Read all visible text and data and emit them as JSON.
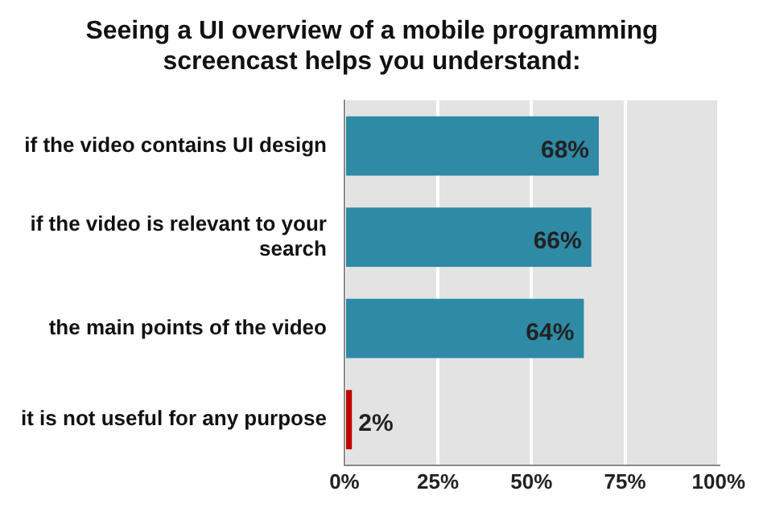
{
  "chart_data": {
    "type": "bar",
    "orientation": "horizontal",
    "title": "Seeing a UI overview of a mobile programming screencast helps you understand:",
    "categories": [
      "if the video contains UI design",
      "if the video is relevant to your search",
      "the main points of the video",
      "it is not useful for any purpose"
    ],
    "values": [
      68,
      66,
      64,
      2
    ],
    "colors": [
      "#2e8aa5",
      "#2e8aa5",
      "#2e8aa5",
      "#c00000"
    ],
    "value_labels": [
      "68%",
      "66%",
      "64%",
      "2%"
    ],
    "xlim": [
      0,
      100
    ],
    "xticks": [
      {
        "value": 0,
        "label": "0%"
      },
      {
        "value": 25,
        "label": "25%"
      },
      {
        "value": 50,
        "label": "50%"
      },
      {
        "value": 75,
        "label": "75%"
      },
      {
        "value": 100,
        "label": "100%"
      }
    ],
    "grid": "x"
  }
}
